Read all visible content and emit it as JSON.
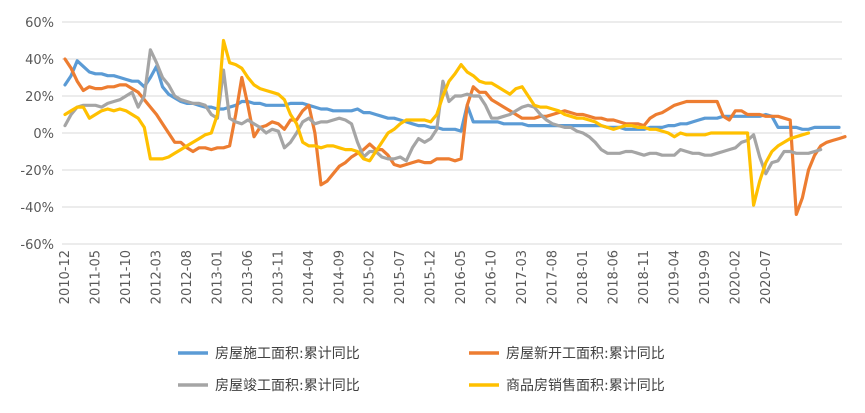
{
  "chart_data": {
    "type": "line",
    "title": "",
    "xlabel": "",
    "ylabel": "",
    "ylim": [
      -60,
      60
    ],
    "yticks": [
      -60,
      -40,
      -20,
      0,
      20,
      40,
      60
    ],
    "ytick_labels": [
      "-60%",
      "-40%",
      "-20%",
      "0%",
      "20%",
      "40%",
      "60%"
    ],
    "grid": "horizontal",
    "legend_position": "bottom",
    "x_start": "2010-12",
    "xtick_labels": [
      "2010-12",
      "2011-05",
      "2011-10",
      "2012-03",
      "2012-08",
      "2013-01",
      "2013-06",
      "2013-11",
      "2014-04",
      "2014-09",
      "2015-02",
      "2015-07",
      "2015-12",
      "2016-05",
      "2016-10",
      "2017-03",
      "2017-08",
      "2018-01",
      "2018-06",
      "2018-11",
      "2019-04",
      "2019-09",
      "2020-02",
      "2020-07"
    ],
    "series": [
      {
        "name": "房屋施工面积:累计同比",
        "color": "#5B9BD5",
        "values": [
          26,
          31,
          39,
          36,
          33,
          32,
          32,
          31,
          31,
          30,
          29,
          28,
          28,
          25,
          30,
          36,
          25,
          21,
          19,
          17,
          16,
          16,
          15,
          14,
          14,
          13,
          13,
          14,
          15,
          17,
          17,
          16,
          16,
          15,
          15,
          15,
          15,
          16,
          16,
          16,
          15,
          14,
          13,
          13,
          12,
          12,
          12,
          12,
          13,
          11,
          11,
          10,
          9,
          8,
          8,
          7,
          6,
          5,
          4,
          4,
          3,
          3,
          2,
          2,
          2,
          1,
          15,
          6,
          6,
          6,
          6,
          6,
          5,
          5,
          5,
          5,
          4,
          4,
          4,
          4,
          4,
          4,
          4,
          4,
          4,
          4,
          4,
          4,
          4,
          3,
          3,
          3,
          2,
          2,
          2,
          2,
          3,
          3,
          3,
          4,
          4,
          5,
          5,
          6,
          7,
          8,
          8,
          8,
          9,
          9,
          9,
          9,
          9,
          9,
          9,
          10,
          9,
          3,
          3,
          3,
          3,
          2,
          2,
          3,
          3,
          3,
          3,
          3
        ]
      },
      {
        "name": "房屋新开工面积:累计同比",
        "color": "#ED7D31",
        "values": [
          40,
          35,
          28,
          23,
          25,
          24,
          24,
          25,
          25,
          26,
          26,
          24,
          22,
          18,
          14,
          10,
          5,
          0,
          -5,
          -5,
          -8,
          -10,
          -8,
          -8,
          -9,
          -8,
          -8,
          -7,
          10,
          30,
          15,
          -2,
          3,
          4,
          6,
          5,
          2,
          7,
          7,
          12,
          15,
          0,
          -28,
          -26,
          -22,
          -18,
          -16,
          -13,
          -11,
          -9,
          -6,
          -9,
          -9,
          -12,
          -17,
          -18,
          -17,
          -16,
          -15,
          -16,
          -16,
          -14,
          -14,
          -14,
          -15,
          -14,
          15,
          25,
          22,
          22,
          18,
          16,
          14,
          12,
          10,
          8,
          8,
          8,
          9,
          9,
          10,
          11,
          12,
          11,
          10,
          10,
          9,
          8,
          8,
          7,
          7,
          6,
          5,
          5,
          5,
          4,
          8,
          10,
          11,
          13,
          15,
          16,
          17,
          17,
          17,
          17,
          17,
          17,
          9,
          7,
          12,
          12,
          10,
          10,
          10,
          9,
          9,
          9,
          8,
          7,
          -44,
          -35,
          -20,
          -12,
          -7,
          -5,
          -4,
          -3,
          -2
        ]
      },
      {
        "name": "房屋竣工面积:累计同比",
        "color": "#A5A5A5",
        "values": [
          4,
          10,
          14,
          15,
          15,
          15,
          14,
          16,
          17,
          18,
          20,
          22,
          14,
          20,
          45,
          38,
          30,
          26,
          20,
          18,
          17,
          16,
          16,
          15,
          10,
          8,
          34,
          8,
          6,
          5,
          7,
          5,
          3,
          0,
          2,
          1,
          -8,
          -5,
          0,
          6,
          8,
          5,
          6,
          6,
          7,
          8,
          7,
          5,
          -5,
          -13,
          -10,
          -10,
          -13,
          -14,
          -14,
          -13,
          -15,
          -8,
          -3,
          -5,
          -3,
          2,
          28,
          17,
          20,
          20,
          21,
          20,
          20,
          15,
          8,
          8,
          9,
          10,
          12,
          14,
          15,
          14,
          10,
          7,
          5,
          4,
          3,
          3,
          1,
          0,
          -2,
          -5,
          -9,
          -11,
          -11,
          -11,
          -10,
          -10,
          -11,
          -12,
          -11,
          -11,
          -12,
          -12,
          -12,
          -9,
          -10,
          -11,
          -11,
          -12,
          -12,
          -11,
          -10,
          -9,
          -8,
          -5,
          -4,
          -1,
          -13,
          -22,
          -16,
          -15,
          -10,
          -10,
          -11,
          -11,
          -11,
          -10,
          -9
        ]
      },
      {
        "name": "商品房销售面积:累计同比",
        "color": "#FFC000",
        "values": [
          10,
          12,
          14,
          14,
          8,
          10,
          12,
          13,
          12,
          13,
          12,
          10,
          8,
          3,
          -14,
          -14,
          -14,
          -13,
          -11,
          -9,
          -7,
          -5,
          -3,
          -1,
          0,
          10,
          50,
          38,
          37,
          35,
          30,
          26,
          24,
          23,
          22,
          21,
          18,
          10,
          5,
          -5,
          -7,
          -7,
          -8,
          -7,
          -7,
          -8,
          -9,
          -9,
          -10,
          -14,
          -15,
          -10,
          -5,
          0,
          2,
          5,
          7,
          7,
          7,
          7,
          6,
          10,
          20,
          28,
          32,
          37,
          33,
          31,
          28,
          27,
          27,
          25,
          23,
          21,
          24,
          25,
          20,
          15,
          14,
          14,
          13,
          12,
          10,
          9,
          8,
          8,
          7,
          6,
          4,
          3,
          2,
          3,
          4,
          4,
          3,
          3,
          2,
          2,
          1,
          0,
          -2,
          0,
          -1,
          -1,
          -1,
          -1,
          0,
          0,
          0,
          0,
          0,
          0,
          0,
          -39,
          -26,
          -16,
          -10,
          -7,
          -5,
          -3,
          -2,
          -1,
          0
        ]
      }
    ]
  }
}
